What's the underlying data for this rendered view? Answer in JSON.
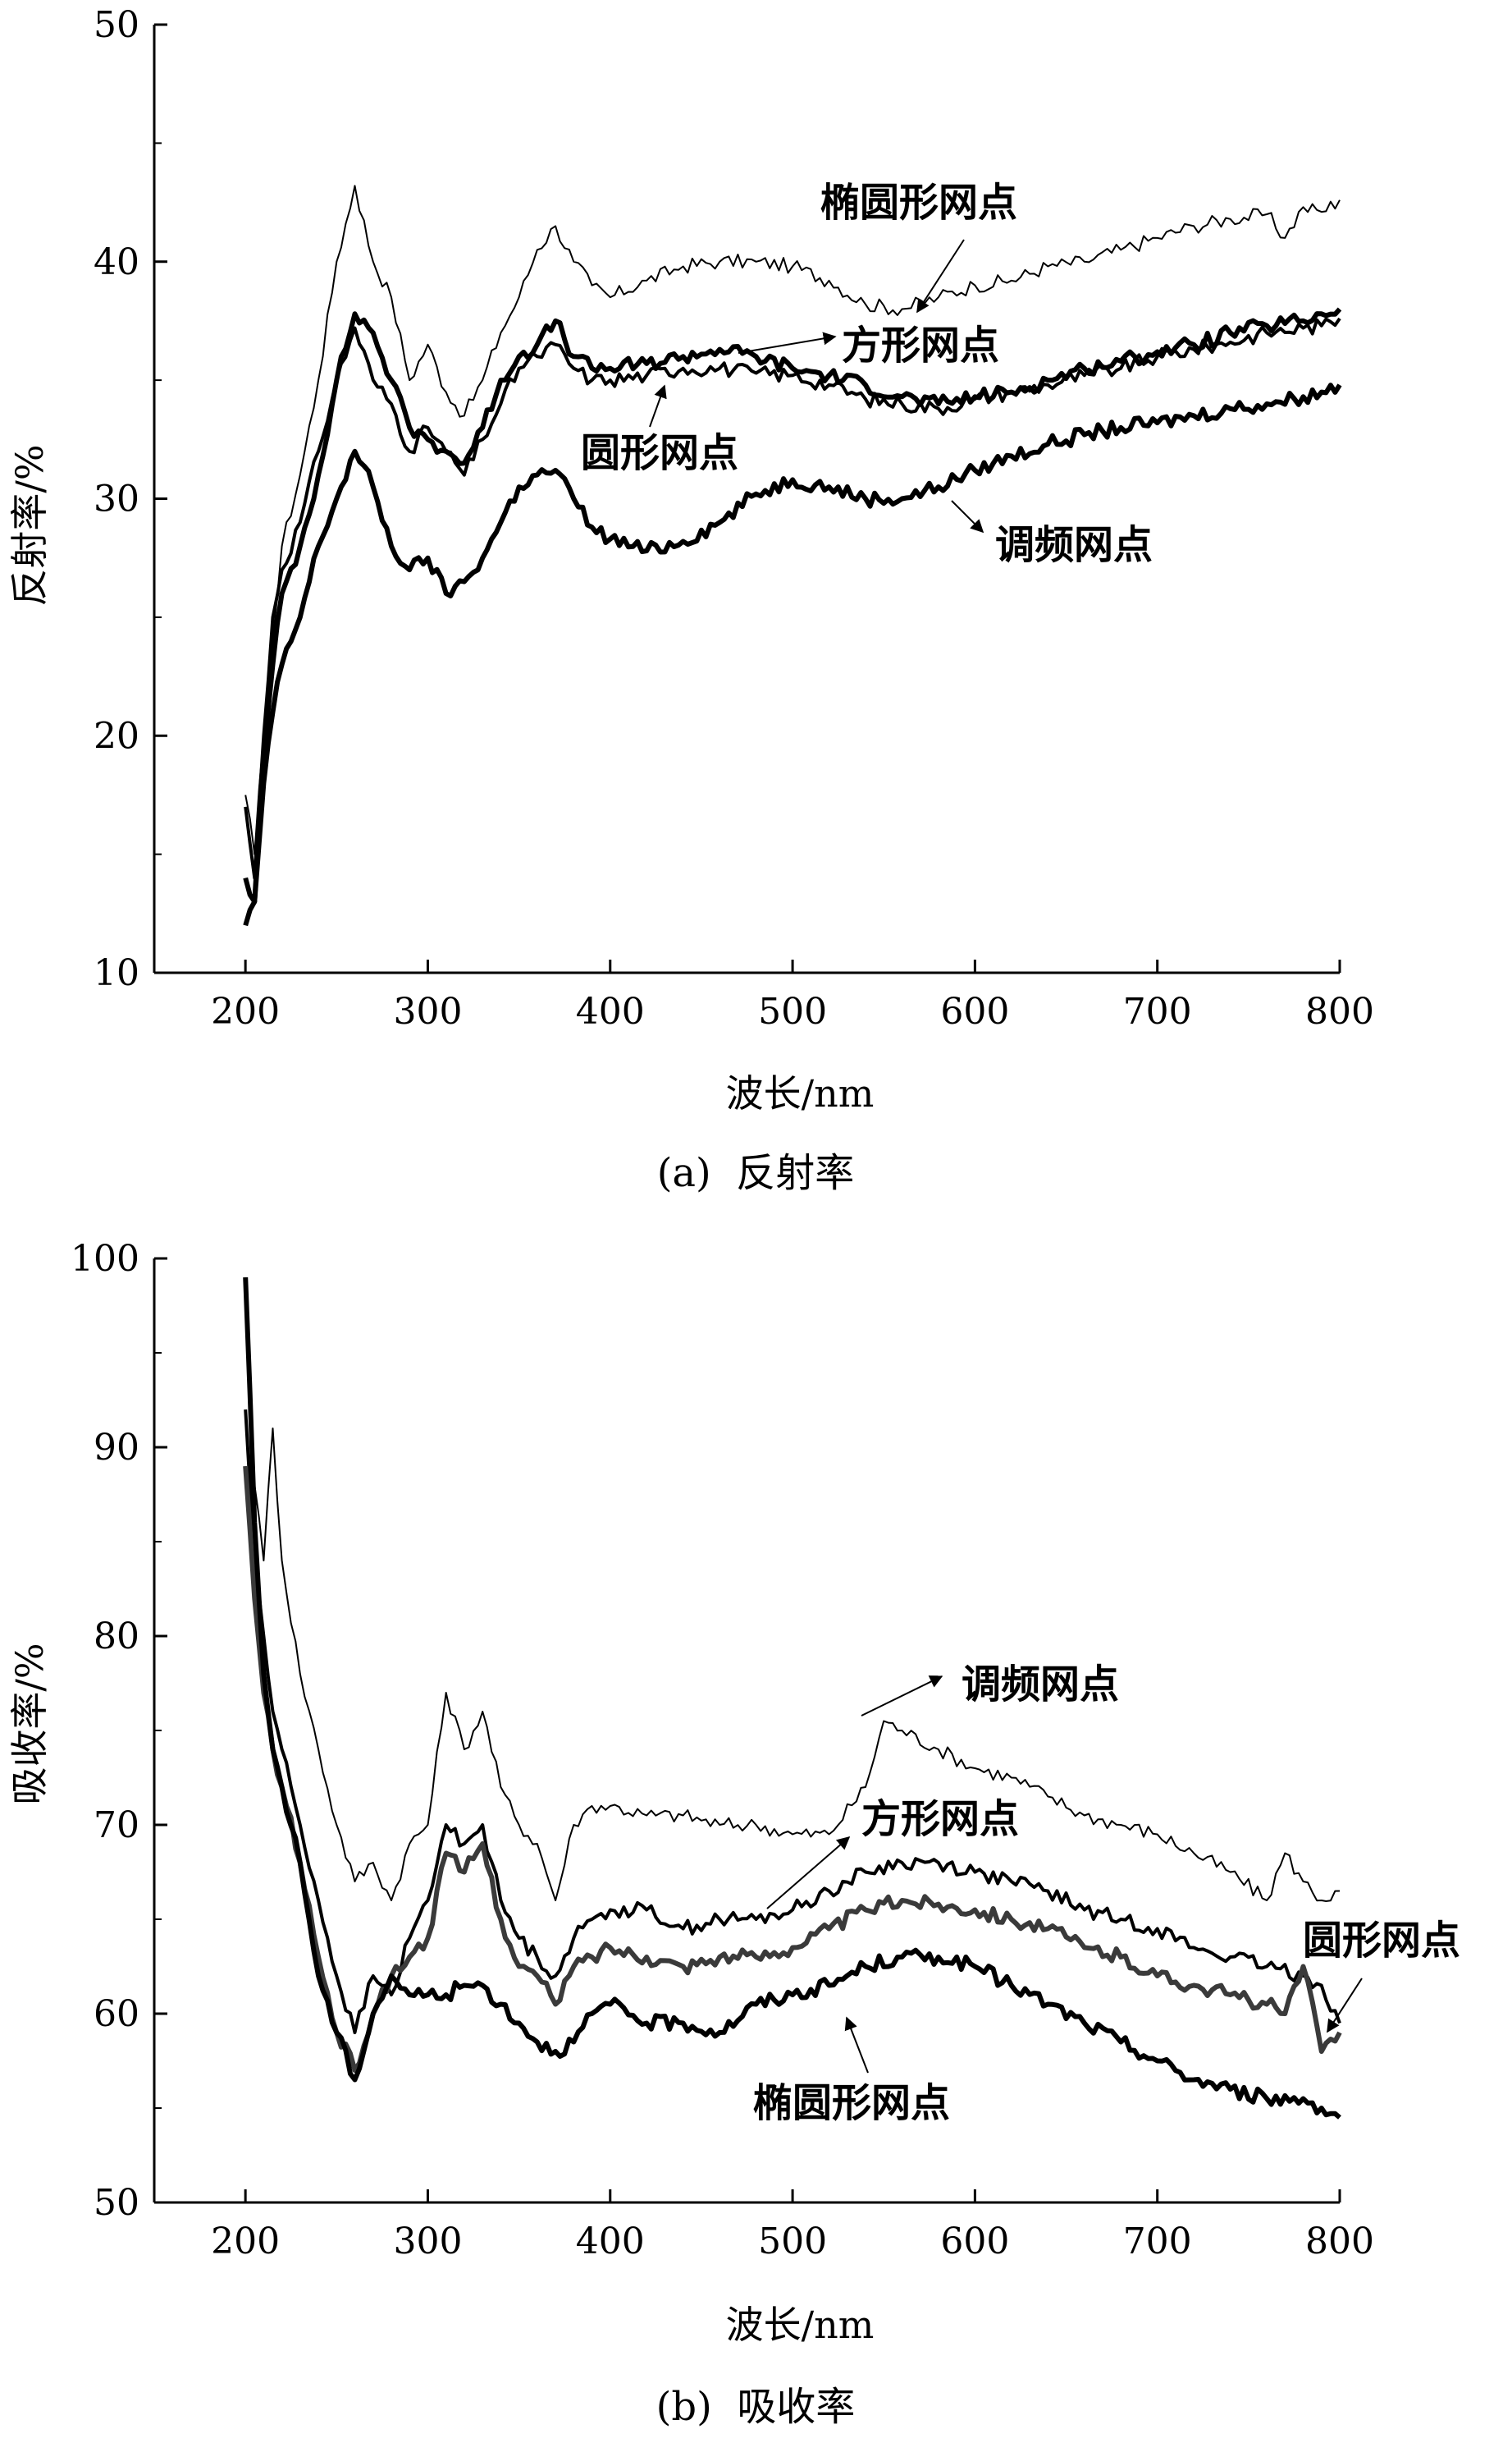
{
  "chart_data": [
    {
      "type": "line",
      "caption": "(a)  反射率",
      "xlabel": "波长/nm",
      "ylabel": "反射率/%",
      "xlim": [
        150,
        800
      ],
      "ylim": [
        10,
        50
      ],
      "x_ticks": [
        200,
        300,
        400,
        500,
        600,
        700,
        800
      ],
      "y_ticks": [
        10,
        20,
        30,
        40,
        50
      ],
      "grid": false,
      "legend": "none",
      "series": [
        {
          "name": "椭圆形网点",
          "line_color": "#000000",
          "weight": "thin",
          "x": [
            200,
            205,
            210,
            215,
            220,
            230,
            240,
            250,
            260,
            270,
            280,
            290,
            300,
            310,
            320,
            330,
            340,
            350,
            360,
            370,
            380,
            390,
            400,
            420,
            440,
            460,
            480,
            500,
            520,
            540,
            560,
            580,
            600,
            620,
            640,
            660,
            680,
            700,
            720,
            740,
            760,
            770,
            780,
            790,
            800
          ],
          "y": [
            17.5,
            15,
            20,
            24,
            28,
            31,
            35,
            40,
            43.2,
            40,
            38.5,
            35,
            36.5,
            34.5,
            33.5,
            35,
            37,
            38.5,
            40.5,
            41.5,
            40,
            39,
            38.5,
            39.2,
            39.8,
            40,
            40,
            39.8,
            39.2,
            38.2,
            38,
            38.5,
            39,
            39.2,
            39.8,
            40,
            40.5,
            41,
            41.5,
            41.8,
            42,
            41,
            42.3,
            42.1,
            42.6
          ]
        },
        {
          "name": "方形网点",
          "line_color": "#000000",
          "weight": "thick",
          "x": [
            200,
            205,
            210,
            215,
            220,
            230,
            240,
            250,
            260,
            270,
            280,
            290,
            300,
            310,
            320,
            330,
            340,
            350,
            360,
            370,
            380,
            390,
            400,
            420,
            440,
            460,
            480,
            500,
            520,
            540,
            560,
            580,
            600,
            620,
            640,
            660,
            680,
            700,
            720,
            740,
            760,
            780,
            790,
            800
          ],
          "y": [
            14,
            13,
            19,
            23,
            26,
            28,
            31,
            35,
            37.8,
            37,
            35,
            33,
            32.5,
            32,
            31.5,
            33,
            35,
            36,
            36.5,
            37.5,
            36,
            35.5,
            35.5,
            35.7,
            36,
            36.3,
            36,
            35.5,
            35.2,
            34.8,
            34.3,
            34,
            34.3,
            34.5,
            35,
            35.5,
            35.8,
            36.2,
            36.5,
            37,
            37.3,
            37.5,
            37.8,
            38
          ]
        },
        {
          "name": "圆形网点",
          "line_color": "#000000",
          "weight": "medium",
          "x": [
            200,
            205,
            210,
            215,
            220,
            230,
            240,
            250,
            260,
            270,
            280,
            290,
            300,
            310,
            320,
            330,
            340,
            350,
            360,
            370,
            380,
            390,
            400,
            420,
            440,
            460,
            480,
            500,
            520,
            540,
            560,
            580,
            600,
            620,
            640,
            660,
            680,
            700,
            720,
            740,
            760,
            780,
            790,
            800
          ],
          "y": [
            17,
            14,
            20,
            25,
            27,
            29,
            32,
            35,
            37.2,
            35,
            34,
            32,
            33,
            32,
            31,
            32.5,
            34,
            35.5,
            36,
            36.5,
            35.5,
            35,
            35,
            35.2,
            35.5,
            35.5,
            35.3,
            35.2,
            34.8,
            34.2,
            34,
            33.8,
            34.2,
            34.5,
            34.8,
            35.2,
            35.5,
            36,
            36.3,
            36.6,
            37,
            37.2,
            37.3,
            37.6
          ]
        },
        {
          "name": "调频网点",
          "line_color": "#000000",
          "weight": "thick",
          "x": [
            200,
            205,
            210,
            215,
            220,
            230,
            240,
            250,
            260,
            270,
            280,
            290,
            300,
            310,
            320,
            330,
            340,
            350,
            360,
            370,
            380,
            390,
            400,
            420,
            440,
            460,
            480,
            500,
            520,
            540,
            560,
            580,
            600,
            620,
            640,
            660,
            680,
            700,
            720,
            740,
            760,
            780,
            790,
            800
          ],
          "y": [
            12,
            13,
            18,
            21,
            23,
            25,
            28,
            30,
            32,
            30.5,
            28,
            27,
            27.5,
            26,
            26.5,
            27.5,
            29,
            30.5,
            31,
            31.2,
            30,
            28.8,
            28.3,
            27.8,
            28.2,
            29,
            30.2,
            30.8,
            30.5,
            30,
            30,
            30.5,
            31.2,
            31.8,
            32.3,
            32.7,
            33,
            33.2,
            33.5,
            33.8,
            34,
            34.3,
            34.5,
            34.8
          ]
        }
      ],
      "annotations": [
        {
          "text": "椭圆形网点",
          "series": "椭圆形网点"
        },
        {
          "text": "方形网点",
          "series": "方形网点"
        },
        {
          "text": "圆形网点",
          "series": "圆形网点"
        },
        {
          "text": "调频网点",
          "series": "调频网点"
        }
      ]
    },
    {
      "type": "line",
      "caption": "(b)  吸收率",
      "xlabel": "波长/nm",
      "ylabel": "吸收率/%",
      "xlim": [
        150,
        800
      ],
      "ylim": [
        50,
        100
      ],
      "x_ticks": [
        200,
        300,
        400,
        500,
        600,
        700,
        800
      ],
      "y_ticks": [
        50,
        60,
        70,
        80,
        90,
        100
      ],
      "grid": false,
      "legend": "none",
      "series": [
        {
          "name": "调频网点",
          "line_color": "#000000",
          "weight": "thin",
          "x": [
            200,
            205,
            210,
            215,
            220,
            230,
            240,
            250,
            260,
            270,
            280,
            290,
            300,
            310,
            320,
            330,
            340,
            350,
            360,
            370,
            380,
            390,
            400,
            420,
            440,
            460,
            480,
            500,
            520,
            540,
            550,
            560,
            580,
            600,
            620,
            640,
            660,
            680,
            700,
            720,
            740,
            760,
            770,
            780,
            790,
            800
          ],
          "y": [
            98,
            88,
            84,
            91,
            84,
            78,
            74,
            70,
            67,
            68,
            66,
            69,
            70,
            77,
            74,
            76,
            72,
            70,
            69,
            66,
            70,
            71,
            71,
            70.5,
            70.5,
            70,
            70,
            69.5,
            69.5,
            72,
            75.5,
            75,
            74,
            73,
            72.5,
            71.5,
            70.5,
            70,
            69.5,
            68.5,
            67.5,
            66,
            68.5,
            67,
            66,
            66.5
          ]
        },
        {
          "name": "方形网点",
          "line_color": "#000000",
          "weight": "medium",
          "x": [
            200,
            205,
            210,
            215,
            220,
            230,
            240,
            250,
            260,
            270,
            280,
            290,
            300,
            310,
            320,
            330,
            340,
            350,
            360,
            370,
            380,
            390,
            400,
            420,
            440,
            460,
            480,
            500,
            520,
            540,
            560,
            580,
            600,
            620,
            640,
            660,
            680,
            700,
            720,
            740,
            760,
            780,
            790,
            800
          ],
          "y": [
            92,
            84,
            80,
            76,
            74,
            70,
            66,
            62,
            59,
            62,
            61,
            64,
            66,
            70,
            69,
            70,
            66,
            64,
            63,
            62,
            64,
            65,
            65.5,
            65.5,
            64.5,
            65,
            65,
            65.5,
            66.5,
            67.5,
            68,
            68,
            67.5,
            67,
            66.5,
            65.5,
            65,
            64.5,
            63.5,
            63,
            62.5,
            62,
            61.5,
            59.5
          ]
        },
        {
          "name": "圆形网点",
          "line_color": "#3a3a3a",
          "weight": "thick",
          "x": [
            200,
            205,
            210,
            215,
            220,
            230,
            240,
            250,
            260,
            270,
            280,
            290,
            300,
            310,
            320,
            330,
            340,
            350,
            360,
            370,
            380,
            390,
            400,
            420,
            440,
            460,
            480,
            500,
            520,
            540,
            560,
            580,
            600,
            620,
            640,
            660,
            680,
            700,
            720,
            740,
            760,
            770,
            780,
            790,
            800
          ],
          "y": [
            89,
            82,
            77,
            74,
            72,
            68,
            63,
            59,
            57,
            60,
            62,
            63,
            64,
            68.5,
            67.5,
            69,
            65,
            62.5,
            62,
            60.5,
            62.5,
            63,
            63.5,
            63,
            62.5,
            63,
            63,
            63.5,
            64.5,
            65.5,
            66,
            65.8,
            65.5,
            65,
            64.5,
            63.5,
            63,
            62,
            61.5,
            61,
            60.5,
            60,
            62.5,
            58,
            59
          ]
        },
        {
          "name": "椭圆形网点",
          "line_color": "#000000",
          "weight": "thick",
          "x": [
            200,
            205,
            210,
            215,
            220,
            230,
            240,
            250,
            260,
            270,
            280,
            290,
            300,
            310,
            320,
            330,
            340,
            350,
            360,
            370,
            380,
            390,
            400,
            420,
            440,
            460,
            480,
            500,
            520,
            540,
            560,
            580,
            600,
            620,
            640,
            660,
            680,
            700,
            720,
            740,
            760,
            780,
            790,
            800
          ],
          "y": [
            99,
            86,
            78,
            74,
            72,
            68,
            62,
            59,
            56.5,
            60,
            62,
            61,
            61,
            61,
            61.5,
            61.5,
            60.5,
            59.5,
            58.5,
            58,
            58.5,
            60,
            60.5,
            59.5,
            59.5,
            59,
            60.5,
            61,
            61.5,
            62.5,
            63,
            63,
            62.5,
            61.5,
            60.5,
            59.5,
            58.5,
            57.5,
            56.5,
            56,
            55.5,
            55.5,
            55,
            54.5
          ]
        }
      ],
      "annotations": [
        {
          "text": "调频网点",
          "series": "调频网点"
        },
        {
          "text": "方形网点",
          "series": "方形网点"
        },
        {
          "text": "圆形网点",
          "series": "圆形网点"
        },
        {
          "text": "椭圆形网点",
          "series": "椭圆形网点"
        }
      ]
    }
  ]
}
